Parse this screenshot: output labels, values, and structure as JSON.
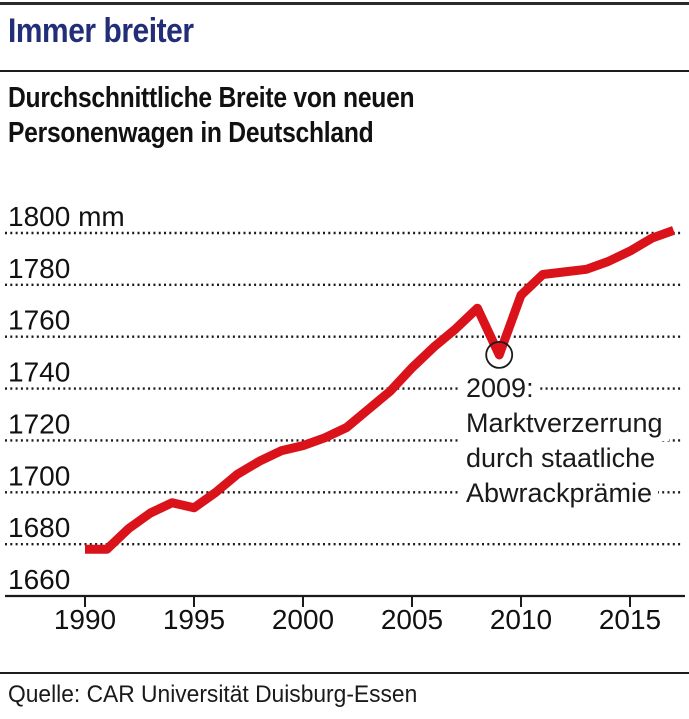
{
  "header": {
    "kicker": "Immer breiter",
    "title_line1": "Durchschnittliche Breite von neuen",
    "title_line2": "Personenwagen in Deutschland"
  },
  "annotation": {
    "lines": [
      "2009:",
      "Marktverzerrung",
      "durch staatliche",
      "Abwrackprämie"
    ]
  },
  "source": "Quelle: CAR Universität Duisburg-Essen",
  "colors": {
    "kicker_blue": "#222e78",
    "line_red": "#da121a",
    "grid_black": "#1a1a1a",
    "text_black": "#111111"
  },
  "chart_data": {
    "type": "line",
    "title": "Immer breiter",
    "subtitle": "Durchschnittliche Breite von neuen Personenwagen in Deutschland",
    "unit": "mm",
    "y_unit_label": "1800 mm",
    "x": [
      1990,
      1991,
      1992,
      1993,
      1994,
      1995,
      1996,
      1997,
      1998,
      1999,
      2000,
      2001,
      2002,
      2003,
      2004,
      2005,
      2006,
      2007,
      2008,
      2009,
      2010,
      2011,
      2012,
      2013,
      2014,
      2015,
      2016,
      2017
    ],
    "values": [
      1678,
      1678,
      1686,
      1692,
      1696,
      1694,
      1700,
      1707,
      1712,
      1716,
      1718,
      1721,
      1725,
      1732,
      1739,
      1748,
      1756,
      1763,
      1771,
      1753,
      1776,
      1784,
      1785,
      1786,
      1789,
      1793,
      1798,
      1801
    ],
    "xticks": [
      1990,
      1995,
      2000,
      2005,
      2010,
      2015
    ],
    "yticks": [
      1660,
      1680,
      1700,
      1720,
      1740,
      1760,
      1780,
      1800
    ],
    "xlim": [
      1990,
      2017
    ],
    "ylim": [
      1660,
      1800
    ],
    "grid": "horizontal-dotted",
    "legend": "none",
    "annotation_point": {
      "year": 2009,
      "value": 1753,
      "label": "2009: Marktverzerrung durch staatliche Abwrackprämie"
    }
  }
}
